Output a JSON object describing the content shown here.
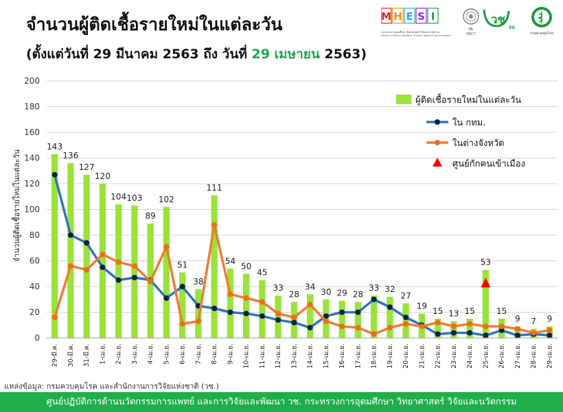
{
  "header": {
    "title": "จำนวนผู้ติดเชื้อรายใหม่ในแต่ละวัน",
    "subtitle_pre": "(ตั้งแต่วันที่ 29 มีนาคม 2563 ถึง วันที่ ",
    "subtitle_hl": "29 เมษายน",
    "subtitle_post": " 2563)"
  },
  "logos": {
    "mhesi_letters": [
      "M",
      "H",
      "E",
      "S",
      "I"
    ],
    "mhesi_colors": [
      "#e31e24",
      "#f39200",
      "#2aa7df",
      "#8a2be2",
      "#21a24a"
    ],
    "mhesi_caption_th": "กระทรวงการอุดมศึกษา วิทยาศาสตร์ วิจัยและนวัตกรรม",
    "mhesi_caption_en": "Ministry of Higher Education, Science, Research and Innovation",
    "nrct_caption": "วช.",
    "nrct_sub": "NRCT",
    "vch_text": "วช",
    "vch_5g": "5G",
    "ddc_caption": "กรมควบคุมโรค"
  },
  "chart_data": {
    "type": "bar+line",
    "categories": [
      "29-มี.ค.",
      "30-มี.ค.",
      "31-มี.ค.",
      "1-เม.ย.",
      "2-เม.ย.",
      "3-เม.ย.",
      "4-เม.ย.",
      "5-เม.ย.",
      "6-เม.ย.",
      "7-เม.ย.",
      "8-เม.ย.",
      "9-เม.ย.",
      "10-เม.ย.",
      "11-เม.ย.",
      "12-เม.ย.",
      "13-เม.ย.",
      "14-เม.ย.",
      "15-เม.ย.",
      "16-เม.ย.",
      "17-เม.ย.",
      "18-เม.ย.",
      "19-เม.ย.",
      "20-เม.ย.",
      "21-เม.ย.",
      "22-เม.ย.",
      "23-เม.ย.",
      "24-เม.ย.",
      "25-เม.ย.",
      "26-เม.ย.",
      "27-เม.ย.",
      "28-เม.ย.",
      "29-เม.ย."
    ],
    "bar_series": {
      "name": "ผู้ติดเชื้อรายใหม่ในแต่ละวัน",
      "color": "#99e33a",
      "values": [
        143,
        136,
        127,
        120,
        104,
        103,
        89,
        102,
        51,
        38,
        111,
        54,
        50,
        45,
        33,
        28,
        34,
        30,
        29,
        28,
        33,
        32,
        27,
        19,
        15,
        13,
        15,
        53,
        15,
        9,
        7,
        9
      ]
    },
    "line_series": [
      {
        "name": "ใน กทม.",
        "color": "#2e75b6",
        "marker_color": "#0d1f4a",
        "values": [
          127,
          80,
          74,
          55,
          45,
          47,
          45,
          31,
          40,
          25,
          23,
          20,
          19,
          17,
          14,
          12,
          8,
          17,
          20,
          20,
          30,
          24,
          16,
          10,
          3,
          4,
          4,
          2,
          6,
          2,
          3,
          2
        ]
      },
      {
        "name": "ในต่างจังหวัด",
        "color": "#ed7d31",
        "marker_color": "#f26a21",
        "values": [
          16,
          56,
          53,
          65,
          59,
          56,
          44,
          71,
          11,
          13,
          88,
          34,
          31,
          28,
          19,
          16,
          26,
          13,
          9,
          8,
          3,
          8,
          11,
          9,
          12,
          9,
          11,
          9,
          9,
          7,
          4,
          6
        ]
      }
    ],
    "point_series": {
      "name": "ศูนย์กักคนเข้าเมือง",
      "color": "#ff0000",
      "category": "25-เม.ย.",
      "value": 42
    },
    "ylabel": "จำนวนผู้ติดเชื้อรายใหม่ในแต่ละวัน",
    "xlabel": "",
    "ylim": [
      0,
      200
    ],
    "yticks": [
      0,
      20,
      40,
      60,
      80,
      100,
      120,
      140,
      160,
      180,
      200
    ],
    "grid": true,
    "legend_position": "top-right"
  },
  "source": "แหล่งข้อมูล: กรมควบคุมโรค และสำนักงานการวิจัยแห่งชาติ (วช.)",
  "footer": "ศูนย์ปฏิบัติการด้านนวัตกรรมการแพทย์ และการวิจัยและพัฒนา  วช.   กระทรวงการอุดมศึกษา วิทยาศาสตร์ วิจัยและนวัตกรรม"
}
